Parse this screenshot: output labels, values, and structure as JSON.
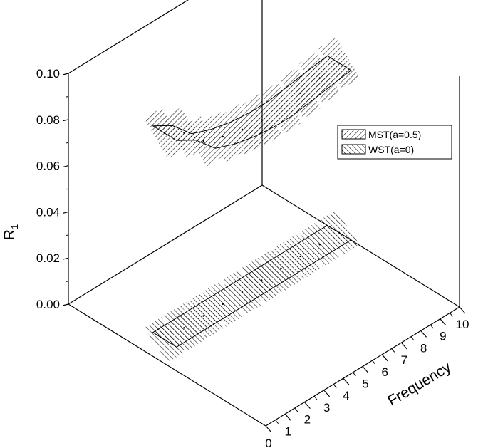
{
  "chart_data": {
    "type": "area",
    "projection": "3d",
    "title": "",
    "xlabel": "Frequency",
    "ylabel": "R₁",
    "ylabel_main": "R",
    "ylabel_sub": "1",
    "xlim": [
      0,
      10
    ],
    "ylim": [
      0,
      0.1
    ],
    "x_ticks": [
      "0",
      "1",
      "2",
      "3",
      "4",
      "5",
      "6",
      "7",
      "8",
      "9",
      "10"
    ],
    "y_ticks": [
      "0.00",
      "0.02",
      "0.04",
      "0.06",
      "0.08",
      "0.10"
    ],
    "legend_position": "right",
    "grid": false,
    "x": [
      1,
      2,
      3,
      4,
      5,
      6,
      7,
      8,
      9,
      10
    ],
    "series": [
      {
        "name": "MST(a=0.5)",
        "pattern": "forward-hatch",
        "values": [
          0.0895,
          0.0845,
          0.0758,
          0.0725,
          0.0705,
          0.0695,
          0.0695,
          0.0708,
          0.0722,
          0.0735
        ]
      },
      {
        "name": "WST(a=0)",
        "pattern": "back-hatch",
        "values": [
          0,
          0,
          0,
          0,
          0,
          0,
          0,
          0,
          0,
          0
        ]
      }
    ],
    "colors": {
      "line": "#000000",
      "background": "#ffffff"
    }
  }
}
